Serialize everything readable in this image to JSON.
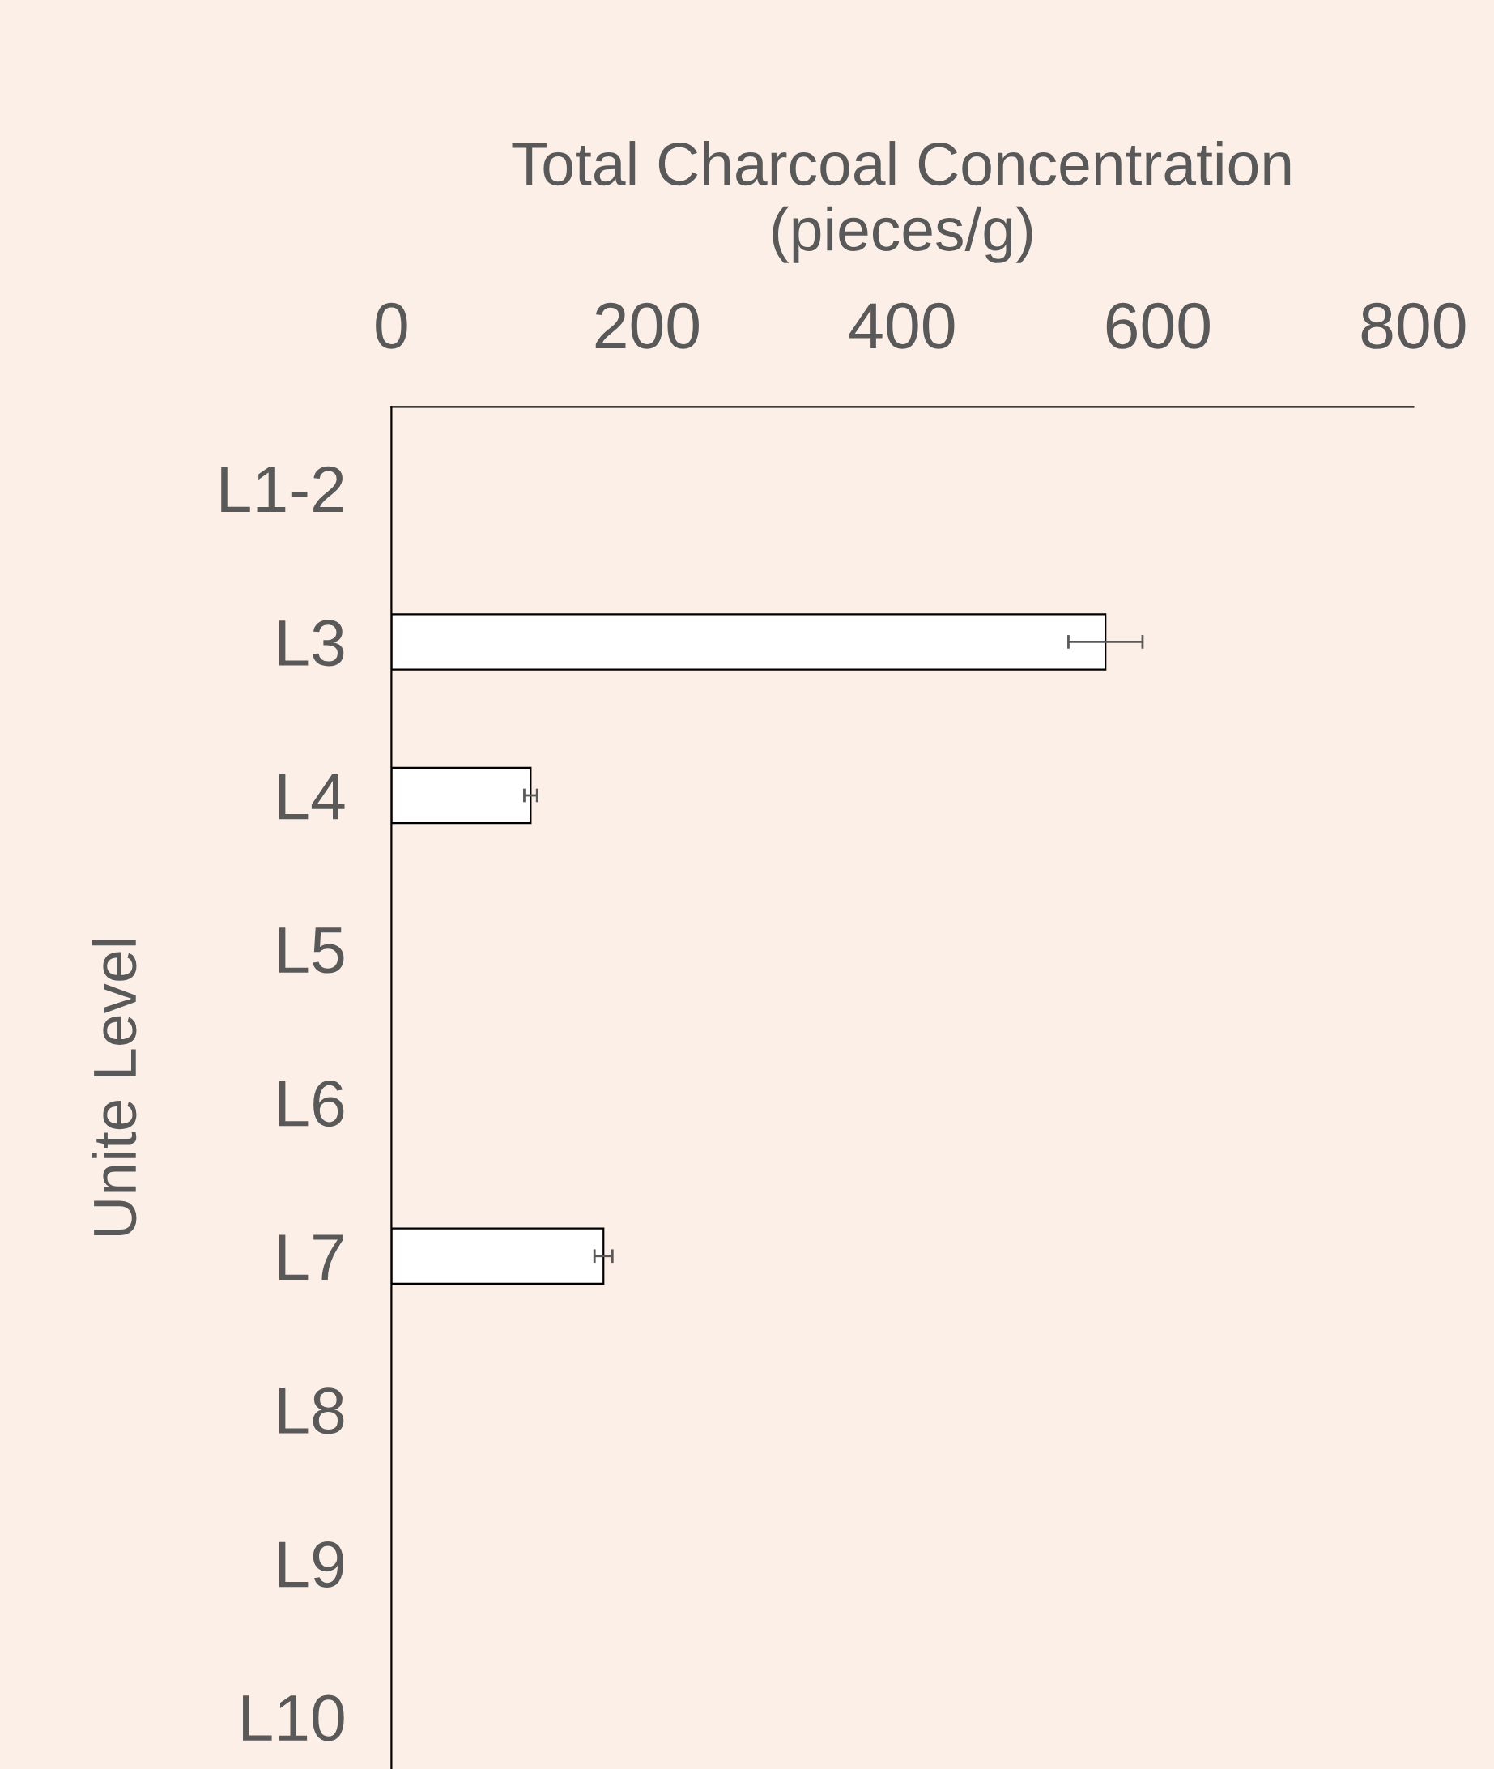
{
  "chart_data": {
    "type": "bar",
    "orientation": "horizontal",
    "xlabel": "Total Charcoal Concentration\n(pieces/g)",
    "ylabel": "Unite Level",
    "categories": [
      "L1-2",
      "L3",
      "L4",
      "L5",
      "L6",
      "L7",
      "L8",
      "L9",
      "L10"
    ],
    "values": [
      null,
      559,
      109,
      null,
      null,
      166,
      null,
      null,
      null
    ],
    "errors": [
      null,
      29,
      5,
      null,
      null,
      7,
      null,
      null,
      null
    ],
    "color": "#ffffff",
    "xlim": [
      0,
      800
    ],
    "xticks": [
      0,
      200,
      400,
      600,
      800
    ],
    "grid": false,
    "legend": false
  }
}
